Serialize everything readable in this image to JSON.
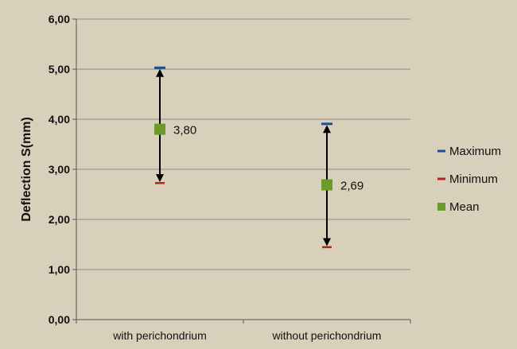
{
  "chart_data": {
    "type": "stock",
    "ylabel": "Deflection S(mm)",
    "ylim": [
      0,
      6
    ],
    "yticks": [
      "0,00",
      "1,00",
      "2,00",
      "3,00",
      "4,00",
      "5,00",
      "6,00"
    ],
    "categories": [
      "with perichondrium",
      "without perichondrium"
    ],
    "series": [
      {
        "name": "Maximum",
        "color": "#1f4e8c",
        "values": [
          5.02,
          3.9
        ]
      },
      {
        "name": "Minimum",
        "color": "#b22222",
        "values": [
          2.73,
          1.45
        ]
      },
      {
        "name": "Mean",
        "color": "#6e9a2c",
        "values": [
          3.8,
          2.69
        ]
      }
    ],
    "data_labels": [
      "3,80",
      "2,69"
    ],
    "grid": true,
    "legend_position": "right"
  }
}
